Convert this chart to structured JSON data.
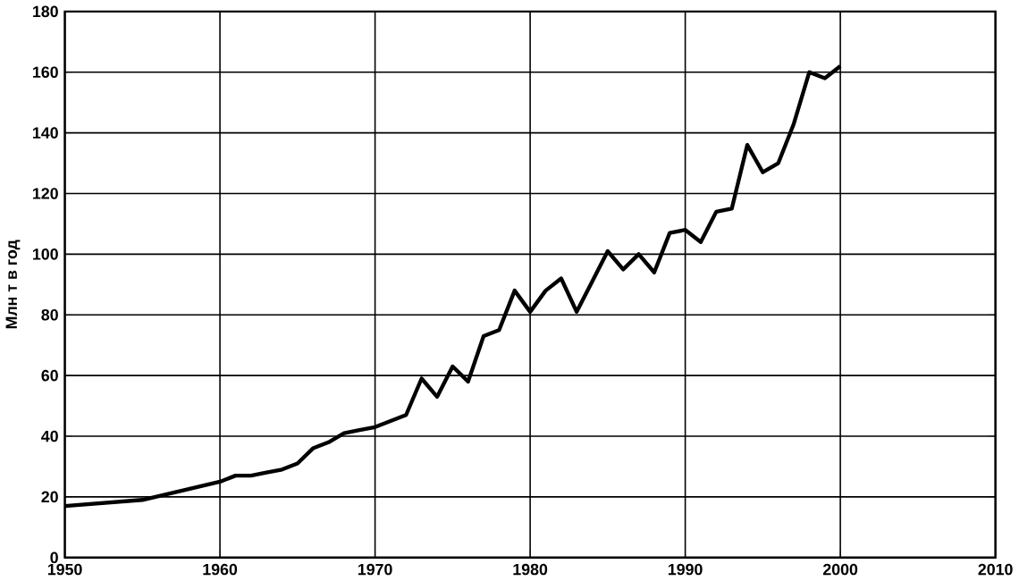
{
  "chart_data": {
    "type": "line",
    "ylabel": "Млн т  в год",
    "x": [
      1950,
      1955,
      1960,
      1961,
      1962,
      1963,
      1964,
      1965,
      1966,
      1967,
      1968,
      1969,
      1970,
      1971,
      1972,
      1973,
      1974,
      1975,
      1976,
      1977,
      1978,
      1979,
      1980,
      1981,
      1982,
      1983,
      1984,
      1985,
      1986,
      1987,
      1988,
      1989,
      1990,
      1991,
      1992,
      1993,
      1994,
      1995,
      1996,
      1997,
      1998,
      1999,
      2000
    ],
    "series": [
      {
        "color": "#000000",
        "values": [
          17,
          19,
          25,
          27,
          27,
          28,
          29,
          31,
          36,
          38,
          41,
          42,
          43,
          45,
          47,
          59,
          53,
          63,
          58,
          73,
          75,
          88,
          81,
          88,
          92,
          81,
          91,
          101,
          95,
          100,
          94,
          107,
          108,
          104,
          114,
          115,
          136,
          127,
          130,
          143,
          160,
          158,
          162
        ]
      }
    ],
    "xlim": [
      1950,
      2010
    ],
    "xticks": [
      1950,
      1960,
      1970,
      1980,
      1990,
      2000,
      2010
    ],
    "ylim": [
      0,
      180
    ],
    "yticks": [
      0,
      20,
      40,
      60,
      80,
      100,
      120,
      140,
      160,
      180
    ],
    "grid": true,
    "marker": "none",
    "line_style": "solid"
  }
}
